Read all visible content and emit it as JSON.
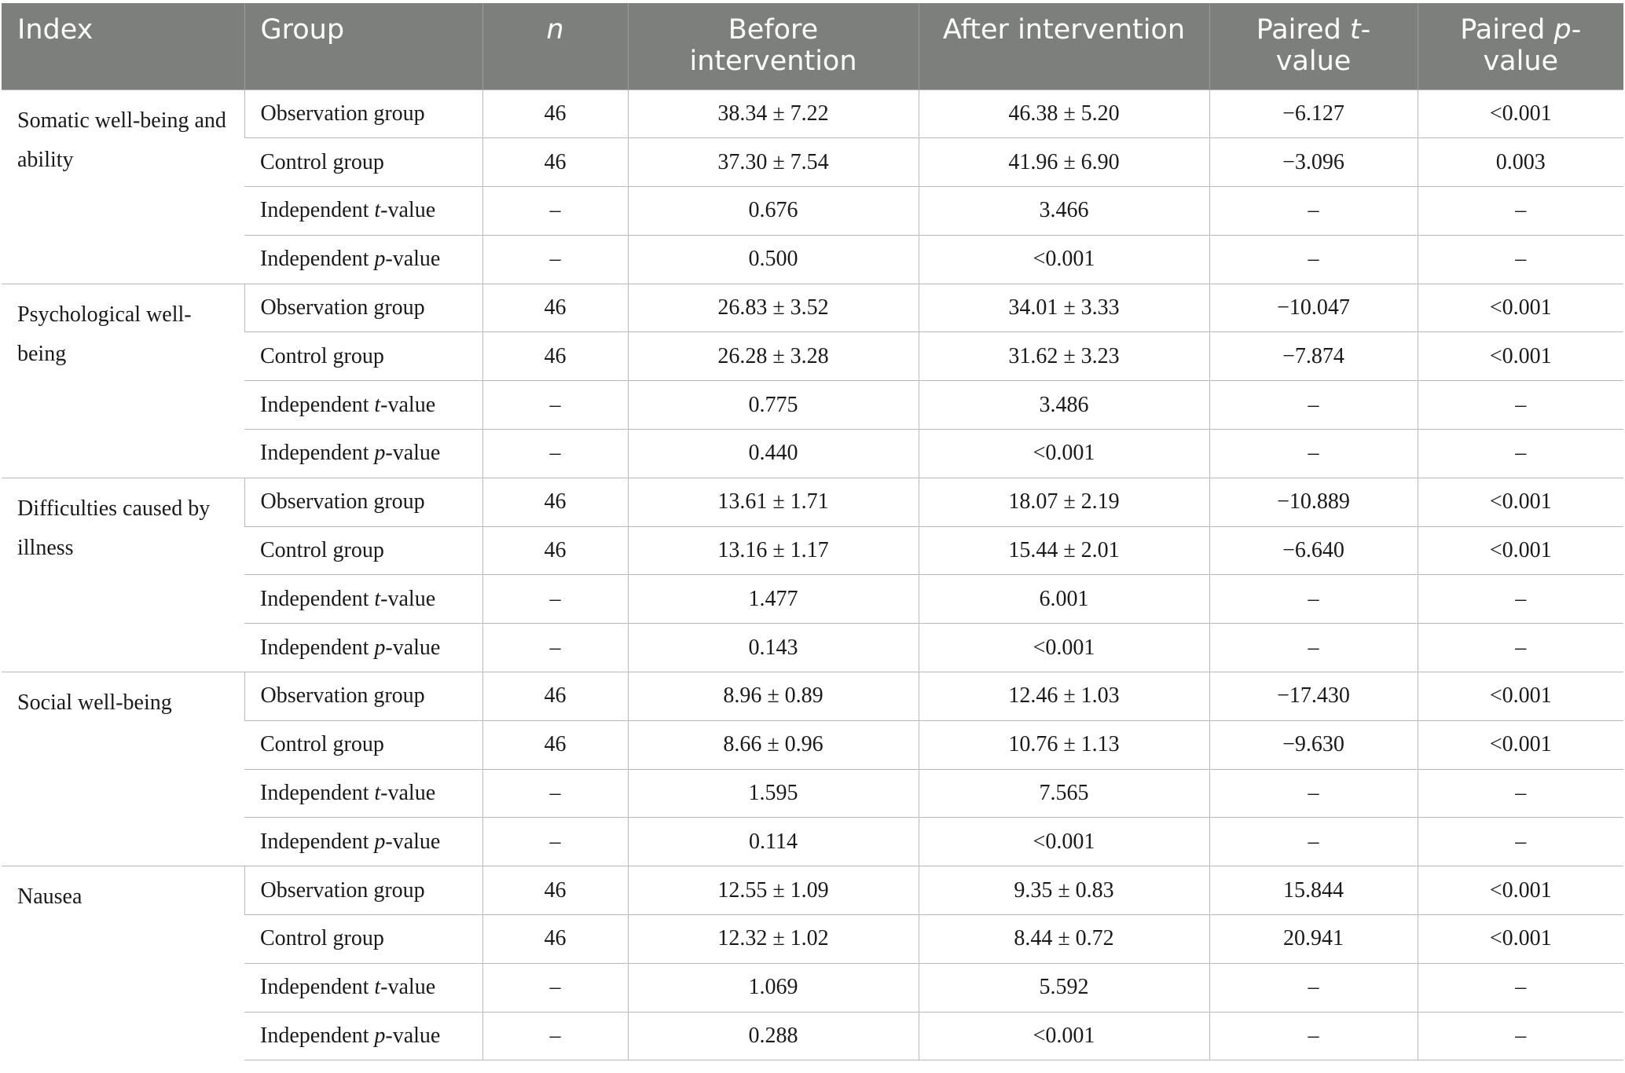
{
  "headers": {
    "index": "Index",
    "group": "Group",
    "n": "n",
    "before": "Before intervention",
    "after": "After intervention",
    "paired_t_pre": "Paired ",
    "paired_t_it": "t",
    "paired_t_post": "-value",
    "paired_p_pre": "Paired ",
    "paired_p_it": "p",
    "paired_p_post": "-value"
  },
  "labels": {
    "observation": "Observation group",
    "control": "Control group",
    "independent": "Independent ",
    "t": "t",
    "p": "p",
    "value_suffix": "-value",
    "dash": "–"
  },
  "blocks": [
    {
      "index": "Somatic well-being and ability",
      "obs": {
        "n": "46",
        "before": "38.34 ± 7.22",
        "after": "46.38 ± 5.20",
        "pt": "−6.127",
        "pp": "<0.001"
      },
      "ctrl": {
        "n": "46",
        "before": "37.30 ± 7.54",
        "after": "41.96 ± 6.90",
        "pt": "−3.096",
        "pp": "0.003"
      },
      "indep_t": {
        "before": "0.676",
        "after": "3.466"
      },
      "indep_p": {
        "before": "0.500",
        "after": "<0.001"
      }
    },
    {
      "index": "Psychological well-being",
      "obs": {
        "n": "46",
        "before": "26.83 ± 3.52",
        "after": "34.01 ± 3.33",
        "pt": "−10.047",
        "pp": "<0.001"
      },
      "ctrl": {
        "n": "46",
        "before": "26.28 ± 3.28",
        "after": "31.62 ± 3.23",
        "pt": "−7.874",
        "pp": "<0.001"
      },
      "indep_t": {
        "before": "0.775",
        "after": "3.486"
      },
      "indep_p": {
        "before": "0.440",
        "after": "<0.001"
      }
    },
    {
      "index": "Difficulties caused by illness",
      "obs": {
        "n": "46",
        "before": "13.61 ± 1.71",
        "after": "18.07 ± 2.19",
        "pt": "−10.889",
        "pp": "<0.001"
      },
      "ctrl": {
        "n": "46",
        "before": "13.16 ± 1.17",
        "after": "15.44 ± 2.01",
        "pt": "−6.640",
        "pp": "<0.001"
      },
      "indep_t": {
        "before": "1.477",
        "after": "6.001"
      },
      "indep_p": {
        "before": "0.143",
        "after": "<0.001"
      }
    },
    {
      "index": "Social well-being",
      "obs": {
        "n": "46",
        "before": "8.96 ± 0.89",
        "after": "12.46 ± 1.03",
        "pt": "−17.430",
        "pp": "<0.001"
      },
      "ctrl": {
        "n": "46",
        "before": "8.66 ± 0.96",
        "after": "10.76 ± 1.13",
        "pt": "−9.630",
        "pp": "<0.001"
      },
      "indep_t": {
        "before": "1.595",
        "after": "7.565"
      },
      "indep_p": {
        "before": "0.114",
        "after": "<0.001"
      }
    },
    {
      "index": "Nausea",
      "obs": {
        "n": "46",
        "before": "12.55 ± 1.09",
        "after": "9.35 ± 0.83",
        "pt": "15.844",
        "pp": "<0.001"
      },
      "ctrl": {
        "n": "46",
        "before": "12.32 ± 1.02",
        "after": "8.44 ± 0.72",
        "pt": "20.941",
        "pp": "<0.001"
      },
      "indep_t": {
        "before": "1.069",
        "after": "5.592"
      },
      "indep_p": {
        "before": "0.288",
        "after": "<0.001"
      }
    }
  ]
}
